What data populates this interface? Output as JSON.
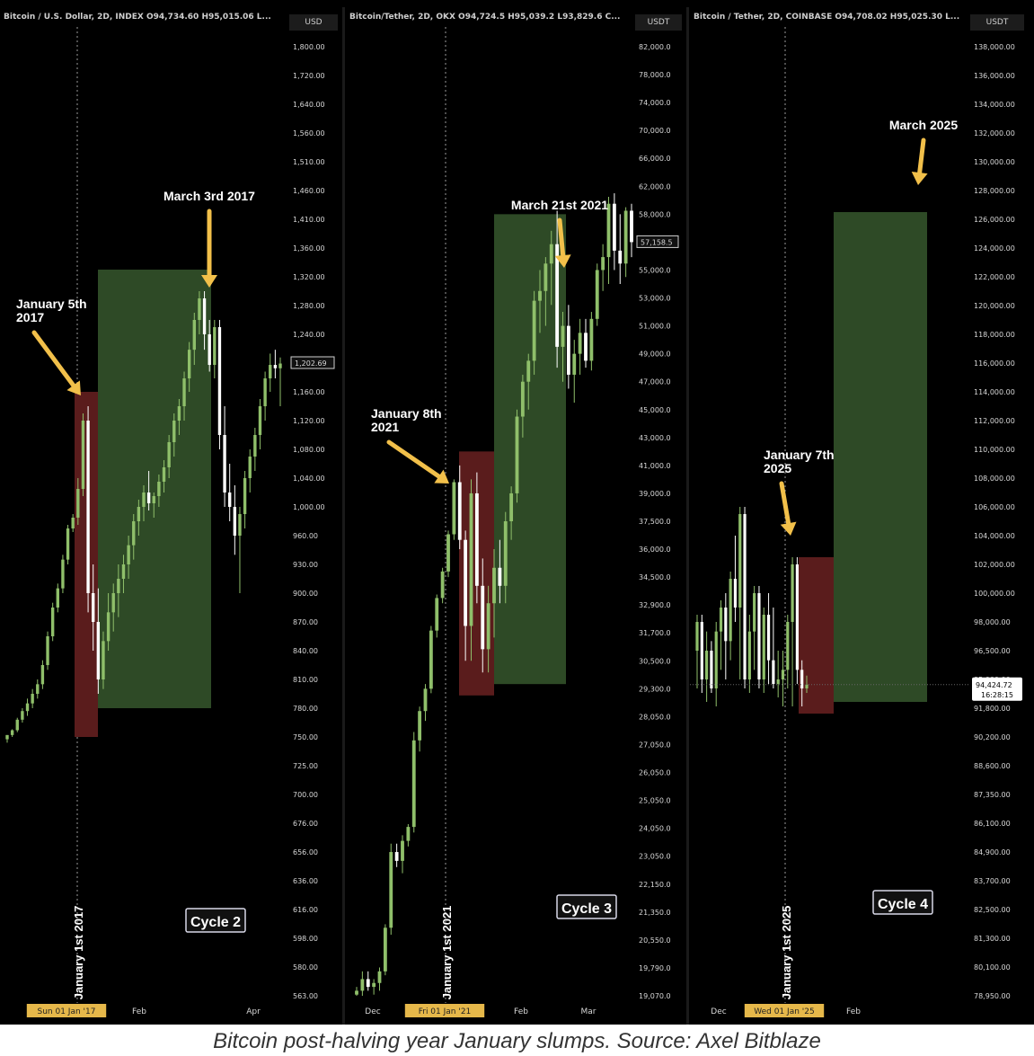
{
  "caption": "Bitcoin post-halving year January slumps. Source: Axel Bitblaze",
  "colors": {
    "background": "#000000",
    "candle_up": "#8fbf6a",
    "candle_down": "#ffffff",
    "green_box": "#2e4a26",
    "red_box": "#5a1c1c",
    "arrow": "#f2c04a",
    "text": "#ffffff",
    "axis_text": "#d8d8d8"
  },
  "chart_data": [
    {
      "type": "candlestick",
      "header": "Bitcoin / U.S. Dollar, 2D, INDEX O94,734.60 H95,015.06 L...",
      "currency": "USD",
      "y_ticks": [
        "1,800.00",
        "1,720.00",
        "1,640.00",
        "1,560.00",
        "1,510.00",
        "1,460.00",
        "1,410.00",
        "1,360.00",
        "1,320.00",
        "1,280.00",
        "1,240.00",
        "1,202.69",
        "1,160.00",
        "1,120.00",
        "1,080.00",
        "1,040.00",
        "1,000.00",
        "960.00",
        "930.00",
        "900.00",
        "870.00",
        "840.00",
        "810.00",
        "780.00",
        "750.00",
        "725.00",
        "700.00",
        "676.00",
        "656.00",
        "636.00",
        "616.00",
        "598.00",
        "580.00",
        "563.00"
      ],
      "last_price": "1,202.69",
      "x_labels": [
        "Sun 01 Jan '17",
        "Feb",
        "Apr"
      ],
      "vline_label": "January 1st 2017",
      "annotations": [
        "January 5th\n2017",
        "March 3rd 2017"
      ],
      "cycle_label": "Cycle 2",
      "red_box": {
        "low": 750,
        "high": 1160
      },
      "green_box": {
        "low": 780,
        "high": 1330
      },
      "candles": [
        [
          748,
          745,
          752,
          752
        ],
        [
          752,
          750,
          758,
          757
        ],
        [
          757,
          755,
          770,
          768
        ],
        [
          768,
          765,
          780,
          777
        ],
        [
          777,
          772,
          790,
          785
        ],
        [
          785,
          780,
          800,
          795
        ],
        [
          795,
          790,
          810,
          805
        ],
        [
          805,
          800,
          830,
          825
        ],
        [
          825,
          820,
          860,
          855
        ],
        [
          855,
          850,
          890,
          885
        ],
        [
          885,
          880,
          910,
          905
        ],
        [
          905,
          900,
          940,
          935
        ],
        [
          935,
          930,
          975,
          970
        ],
        [
          970,
          965,
          990,
          985
        ],
        [
          985,
          975,
          1040,
          1025
        ],
        [
          1025,
          1015,
          1130,
          1120
        ],
        [
          1120,
          880,
          1140,
          900
        ],
        [
          900,
          840,
          930,
          870
        ],
        [
          870,
          795,
          905,
          810
        ],
        [
          810,
          800,
          860,
          850
        ],
        [
          850,
          840,
          900,
          880
        ],
        [
          880,
          860,
          910,
          900
        ],
        [
          900,
          875,
          930,
          915
        ],
        [
          915,
          900,
          940,
          930
        ],
        [
          930,
          915,
          960,
          950
        ],
        [
          950,
          935,
          990,
          980
        ],
        [
          980,
          960,
          1010,
          1000
        ],
        [
          1000,
          980,
          1030,
          1020
        ],
        [
          1020,
          995,
          1050,
          1005
        ],
        [
          1005,
          985,
          1020,
          1015
        ],
        [
          1015,
          1000,
          1045,
          1035
        ],
        [
          1035,
          1020,
          1065,
          1055
        ],
        [
          1055,
          1040,
          1100,
          1090
        ],
        [
          1090,
          1070,
          1130,
          1120
        ],
        [
          1120,
          1100,
          1150,
          1140
        ],
        [
          1140,
          1120,
          1190,
          1180
        ],
        [
          1180,
          1160,
          1230,
          1220
        ],
        [
          1220,
          1200,
          1270,
          1260
        ],
        [
          1260,
          1240,
          1300,
          1290
        ],
        [
          1290,
          1220,
          1300,
          1240
        ],
        [
          1240,
          1190,
          1260,
          1200
        ],
        [
          1200,
          1180,
          1260,
          1250
        ],
        [
          1250,
          1080,
          1260,
          1100
        ],
        [
          1100,
          1000,
          1140,
          1020
        ],
        [
          1020,
          980,
          1060,
          1000
        ],
        [
          1000,
          940,
          1030,
          960
        ],
        [
          960,
          900,
          1000,
          990
        ],
        [
          990,
          970,
          1050,
          1040
        ],
        [
          1040,
          1020,
          1080,
          1070
        ],
        [
          1070,
          1050,
          1110,
          1100
        ],
        [
          1100,
          1080,
          1150,
          1140
        ],
        [
          1140,
          1120,
          1190,
          1180
        ],
        [
          1180,
          1160,
          1215,
          1200
        ],
        [
          1200,
          1180,
          1220,
          1195
        ],
        [
          1195,
          1140,
          1210,
          1202
        ]
      ]
    },
    {
      "type": "candlestick",
      "header": "Bitcoin/Tether, 2D, OKX O94,724.5 H95,039.2 L93,829.6 C...",
      "currency": "USDT",
      "y_ticks": [
        "82,000.0",
        "78,000.0",
        "74,000.0",
        "70,000.0",
        "66,000.0",
        "62,000.0",
        "58,000.0",
        "57,158.5",
        "55,000.0",
        "53,000.0",
        "51,000.0",
        "49,000.0",
        "47,000.0",
        "45,000.0",
        "43,000.0",
        "41,000.0",
        "39,000.0",
        "37,500.0",
        "36,000.0",
        "34,500.0",
        "32,900.0",
        "31,700.0",
        "30,500.0",
        "29,300.0",
        "28,050.0",
        "27,050.0",
        "26,050.0",
        "25,050.0",
        "24,050.0",
        "23,050.0",
        "22,150.0",
        "21,350.0",
        "20,550.0",
        "19,790.0",
        "19,070.0"
      ],
      "last_price": "57,158.5",
      "x_labels": [
        "Dec",
        "Fri 01 Jan '21",
        "Feb",
        "Mar"
      ],
      "vline_label": "January 1st 2021",
      "annotations": [
        "January 8th\n2021",
        "March 21st 2021"
      ],
      "cycle_label": "Cycle 3",
      "red_box": {
        "low": 29000,
        "high": 42000
      },
      "green_box": {
        "low": 29500,
        "high": 58000
      },
      "candles": [
        [
          19100,
          18900,
          19300,
          19200
        ],
        [
          19200,
          19000,
          19700,
          19500
        ],
        [
          19500,
          19200,
          19700,
          19300
        ],
        [
          19300,
          19100,
          19500,
          19400
        ],
        [
          19400,
          19200,
          19800,
          19700
        ],
        [
          19700,
          19600,
          21000,
          20900
        ],
        [
          20900,
          20700,
          23500,
          23200
        ],
        [
          23200,
          22700,
          23500,
          22900
        ],
        [
          22900,
          22500,
          23800,
          23600
        ],
        [
          23600,
          23400,
          24200,
          24100
        ],
        [
          24100,
          23900,
          27500,
          27200
        ],
        [
          27200,
          26800,
          28500,
          28300
        ],
        [
          28300,
          27900,
          29500,
          29300
        ],
        [
          29300,
          29100,
          32000,
          31800
        ],
        [
          31800,
          31500,
          33500,
          33300
        ],
        [
          33300,
          33000,
          35000,
          34800
        ],
        [
          34800,
          34500,
          37000,
          36800
        ],
        [
          36800,
          36500,
          40000,
          39800
        ],
        [
          39800,
          36000,
          41000,
          36500
        ],
        [
          36500,
          30500,
          37000,
          32000
        ],
        [
          32000,
          30500,
          40000,
          39000
        ],
        [
          39000,
          33000,
          40500,
          34000
        ],
        [
          34000,
          30000,
          35500,
          31000
        ],
        [
          31000,
          30000,
          34000,
          33000
        ],
        [
          33000,
          31500,
          36000,
          35000
        ],
        [
          35000,
          33000,
          36500,
          34000
        ],
        [
          34000,
          33000,
          38000,
          37500
        ],
        [
          37500,
          36500,
          39500,
          39000
        ],
        [
          39000,
          38500,
          45000,
          44500
        ],
        [
          44500,
          43000,
          47500,
          47000
        ],
        [
          47000,
          45000,
          49000,
          48500
        ],
        [
          48500,
          47500,
          53500,
          52800
        ],
        [
          52800,
          50500,
          55000,
          53500
        ],
        [
          53500,
          51000,
          56000,
          55500
        ],
        [
          55500,
          52500,
          57500,
          57000
        ],
        [
          57000,
          48000,
          58500,
          49500
        ],
        [
          49500,
          47000,
          52000,
          51000
        ],
        [
          51000,
          46500,
          52500,
          47500
        ],
        [
          47500,
          45500,
          50000,
          49000
        ],
        [
          49000,
          47500,
          51500,
          50500
        ],
        [
          50500,
          48000,
          51500,
          48500
        ],
        [
          48500,
          47800,
          52000,
          51500
        ],
        [
          51500,
          51000,
          55500,
          55000
        ],
        [
          55000,
          53500,
          57000,
          56000
        ],
        [
          56000,
          54000,
          60500,
          59500
        ],
        [
          59500,
          55000,
          61000,
          56500
        ],
        [
          56500,
          54000,
          58000,
          55500
        ],
        [
          55500,
          54500,
          59000,
          58500
        ],
        [
          58500,
          56000,
          59500,
          57158
        ]
      ]
    },
    {
      "type": "candlestick",
      "header": "Bitcoin / Tether, 2D, COINBASE O94,708.02 H95,025.30 L...",
      "currency": "USDT",
      "y_ticks": [
        "138,000.00",
        "136,000.00",
        "134,000.00",
        "132,000.00",
        "130,000.00",
        "128,000.00",
        "126,000.00",
        "124,000.00",
        "122,000.00",
        "120,000.00",
        "118,000.00",
        "116,000.00",
        "114,000.00",
        "112,000.00",
        "110,000.00",
        "108,000.00",
        "106,000.00",
        "104,000.00",
        "102,000.00",
        "100,000.00",
        "98,000.00",
        "96,500.00",
        "95,000.00",
        "91,800.00",
        "90,200.00",
        "88,600.00",
        "87,350.00",
        "86,100.00",
        "84,900.00",
        "83,700.00",
        "82,500.00",
        "81,300.00",
        "80,100.00",
        "78,950.00"
      ],
      "last_price": "94,424.72",
      "countdown": "16:28:15",
      "x_labels": [
        "Dec",
        "Wed 01 Jan '25",
        "Feb"
      ],
      "vline_label": "January 1st 2025",
      "annotations": [
        "January 7th\n2025",
        "March 2025"
      ],
      "cycle_label": "Cycle 4",
      "red_box": {
        "low": 91500,
        "high": 102500
      },
      "green_box": {
        "low": 92500,
        "high": 126500
      },
      "candles": [
        [
          96500,
          94000,
          98500,
          98000
        ],
        [
          98000,
          93500,
          98500,
          95000
        ],
        [
          95000,
          92500,
          97500,
          96500
        ],
        [
          96500,
          93500,
          97000,
          94000
        ],
        [
          94000,
          92000,
          98000,
          97500
        ],
        [
          97500,
          95500,
          99500,
          99000
        ],
        [
          99000,
          95000,
          100000,
          97000
        ],
        [
          97000,
          96000,
          101500,
          101000
        ],
        [
          101000,
          98000,
          104000,
          99000
        ],
        [
          99000,
          95000,
          106000,
          105500
        ],
        [
          105500,
          94000,
          106000,
          95000
        ],
        [
          95000,
          93500,
          98500,
          97500
        ],
        [
          97500,
          95500,
          100500,
          100000
        ],
        [
          100000,
          94000,
          100500,
          95000
        ],
        [
          95000,
          93500,
          99000,
          98500
        ],
        [
          98500,
          94500,
          100000,
          96000
        ],
        [
          96000,
          94000,
          99000,
          94500
        ],
        [
          94500,
          93000,
          96500,
          95000
        ],
        [
          95000,
          92000,
          96500,
          95500
        ],
        [
          95500,
          94000,
          98500,
          98000
        ],
        [
          98000,
          92000,
          102500,
          102000
        ],
        [
          102000,
          94500,
          102500,
          95500
        ],
        [
          95500,
          92000,
          96000,
          94000
        ],
        [
          94000,
          93500,
          95200,
          94424
        ]
      ]
    }
  ]
}
